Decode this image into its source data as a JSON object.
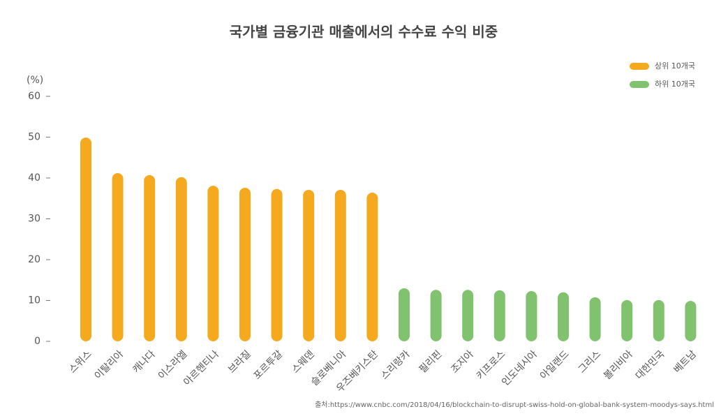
{
  "chart_data": {
    "type": "bar",
    "title": "국가별 금융기관 매출에서의 수수료 수익 비중",
    "y_label": "(%)",
    "source": "출처:https://www.cnbc.com/2018/04/16/blockchain-to-disrupt-swiss-hold-on-global-bank-system-moodys-says.html",
    "categories": [
      "스위스",
      "이탈리아",
      "캐나다",
      "이스라엘",
      "아르헨티나",
      "브라질",
      "포르투갈",
      "스웨덴",
      "슬로베니아",
      "우즈베키스탄",
      "스리랑카",
      "필리핀",
      "조지아",
      "키프로스",
      "인도네시아",
      "아일랜드",
      "그리스",
      "볼리비아",
      "대한민국",
      "베트남"
    ],
    "series": [
      {
        "name": "상위 10개국",
        "color": "#f5a91f",
        "values": [
          49.9,
          41.2,
          40.7,
          40.2,
          38.1,
          37.6,
          37.3,
          37.1,
          37.1,
          36.4,
          null,
          null,
          null,
          null,
          null,
          null,
          null,
          null,
          null,
          null
        ]
      },
      {
        "name": "하위 10개국",
        "color": "#80c26e",
        "values": [
          null,
          null,
          null,
          null,
          null,
          null,
          null,
          null,
          null,
          null,
          13.0,
          12.6,
          12.6,
          12.5,
          12.3,
          12.0,
          10.8,
          10.1,
          10.1,
          9.9
        ]
      }
    ],
    "ylim": [
      0,
      60
    ],
    "yticks": [
      0,
      10,
      20,
      30,
      40,
      50,
      60
    ],
    "legend": "top-right"
  }
}
